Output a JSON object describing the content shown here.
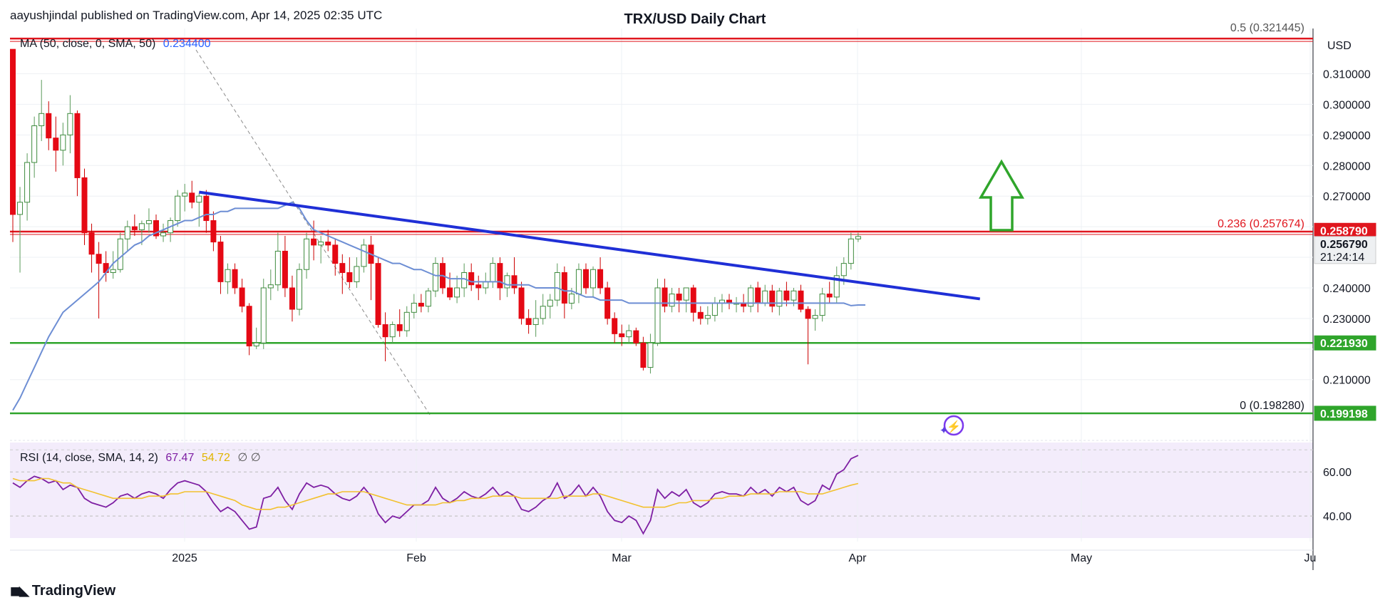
{
  "header": {
    "published": "aayushjindal published on TradingView.com, Apr 14, 2025 02:35 UTC",
    "title": "TRX/USD Daily Chart",
    "currency": "USD"
  },
  "ma_legend": {
    "label": "MA (50, close, 0, SMA, 50)",
    "value": "0.234400"
  },
  "rsi_legend": {
    "label": "RSI (14, close, SMA, 14, 2)",
    "rsi": "67.47",
    "sma": "54.72",
    "extra": "∅ ∅"
  },
  "brand": {
    "name": "TradingView",
    "logo": "tradingview-logo-icon"
  },
  "colors": {
    "up": "#7dc87d",
    "down": "#e50914",
    "ma": "#6d8ed4",
    "trendline": "#1f2fd6",
    "resistance": "#e0161e",
    "support": "#2fa52b",
    "rsi": "#7e1fa3",
    "rsi_sma": "#f2c12e",
    "rsi_band": "#f3ecfb",
    "arrow": "#2fa52b"
  },
  "chart_data": [
    {
      "type": "candlestick",
      "title": "TRX/USD Daily Chart",
      "currency": "USD",
      "x_axis": {
        "ticks": [
          "2025",
          "Feb",
          "Mar",
          "Apr",
          "May",
          "Ju"
        ]
      },
      "y_axis": {
        "ticks": [
          "0.310000",
          "0.300000",
          "0.290000",
          "0.280000",
          "0.270000",
          "0.240000",
          "0.230000",
          "0.210000"
        ],
        "range": [
          0.192,
          0.322
        ]
      },
      "price_badges": [
        {
          "value": "0.258790",
          "color": "red"
        },
        {
          "value": "0.256790",
          "sub": "21:24:14",
          "color": "gray"
        },
        {
          "value": "0.221930",
          "color": "green"
        },
        {
          "value": "0.199198",
          "color": "green"
        }
      ],
      "fib_levels": [
        {
          "label": "0.236 (0.257674)",
          "value": 0.257674
        },
        {
          "label": "0 (0.198280)",
          "value": 0.19828
        },
        {
          "label": "0.5 (0.321445)",
          "value": 0.321445
        }
      ],
      "horizontal_lines": [
        {
          "value": 0.3215,
          "color": "red"
        },
        {
          "value": 0.2584,
          "color": "red"
        },
        {
          "value": 0.222,
          "color": "green"
        },
        {
          "value": 0.199,
          "color": "green"
        }
      ],
      "candles": [
        [
          0.318,
          0.318,
          0.255,
          0.264
        ],
        [
          0.264,
          0.273,
          0.245,
          0.268
        ],
        [
          0.268,
          0.284,
          0.262,
          0.281
        ],
        [
          0.281,
          0.296,
          0.276,
          0.293
        ],
        [
          0.293,
          0.308,
          0.288,
          0.297
        ],
        [
          0.297,
          0.301,
          0.285,
          0.289
        ],
        [
          0.289,
          0.296,
          0.278,
          0.285
        ],
        [
          0.285,
          0.294,
          0.28,
          0.29
        ],
        [
          0.29,
          0.303,
          0.284,
          0.297
        ],
        [
          0.297,
          0.298,
          0.27,
          0.276
        ],
        [
          0.276,
          0.279,
          0.254,
          0.258
        ],
        [
          0.258,
          0.261,
          0.245,
          0.251
        ],
        [
          0.251,
          0.255,
          0.23,
          0.248
        ],
        [
          0.248,
          0.252,
          0.242,
          0.245
        ],
        [
          0.245,
          0.252,
          0.243,
          0.246
        ],
        [
          0.246,
          0.258,
          0.245,
          0.256
        ],
        [
          0.256,
          0.262,
          0.252,
          0.26
        ],
        [
          0.26,
          0.264,
          0.257,
          0.259
        ],
        [
          0.259,
          0.262,
          0.254,
          0.261
        ],
        [
          0.261,
          0.266,
          0.258,
          0.262
        ],
        [
          0.262,
          0.264,
          0.256,
          0.257
        ],
        [
          0.257,
          0.261,
          0.255,
          0.258
        ],
        [
          0.258,
          0.263,
          0.255,
          0.262
        ],
        [
          0.262,
          0.272,
          0.26,
          0.27
        ],
        [
          0.27,
          0.274,
          0.265,
          0.271
        ],
        [
          0.271,
          0.275,
          0.266,
          0.268
        ],
        [
          0.268,
          0.271,
          0.26,
          0.27
        ],
        [
          0.27,
          0.272,
          0.258,
          0.262
        ],
        [
          0.262,
          0.265,
          0.252,
          0.255
        ],
        [
          0.255,
          0.257,
          0.238,
          0.242
        ],
        [
          0.242,
          0.248,
          0.238,
          0.246
        ],
        [
          0.246,
          0.248,
          0.238,
          0.24
        ],
        [
          0.24,
          0.243,
          0.232,
          0.234
        ],
        [
          0.234,
          0.235,
          0.218,
          0.221
        ],
        [
          0.221,
          0.227,
          0.22,
          0.222
        ],
        [
          0.222,
          0.243,
          0.22,
          0.24
        ],
        [
          0.24,
          0.246,
          0.236,
          0.241
        ],
        [
          0.241,
          0.258,
          0.239,
          0.252
        ],
        [
          0.252,
          0.257,
          0.237,
          0.24
        ],
        [
          0.24,
          0.244,
          0.229,
          0.233
        ],
        [
          0.233,
          0.248,
          0.231,
          0.246
        ],
        [
          0.246,
          0.258,
          0.243,
          0.256
        ],
        [
          0.256,
          0.262,
          0.249,
          0.254
        ],
        [
          0.254,
          0.257,
          0.248,
          0.255
        ],
        [
          0.255,
          0.259,
          0.252,
          0.254
        ],
        [
          0.254,
          0.256,
          0.244,
          0.248
        ],
        [
          0.248,
          0.251,
          0.238,
          0.245
        ],
        [
          0.245,
          0.25,
          0.24,
          0.242
        ],
        [
          0.242,
          0.25,
          0.24,
          0.247
        ],
        [
          0.247,
          0.256,
          0.245,
          0.254
        ],
        [
          0.254,
          0.257,
          0.236,
          0.248
        ],
        [
          0.248,
          0.25,
          0.227,
          0.228
        ],
        [
          0.228,
          0.232,
          0.216,
          0.224
        ],
        [
          0.224,
          0.229,
          0.222,
          0.228
        ],
        [
          0.228,
          0.233,
          0.224,
          0.226
        ],
        [
          0.226,
          0.234,
          0.224,
          0.232
        ],
        [
          0.232,
          0.238,
          0.23,
          0.235
        ],
        [
          0.235,
          0.238,
          0.232,
          0.234
        ],
        [
          0.234,
          0.24,
          0.232,
          0.239
        ],
        [
          0.239,
          0.25,
          0.237,
          0.248
        ],
        [
          0.248,
          0.25,
          0.238,
          0.24
        ],
        [
          0.24,
          0.245,
          0.236,
          0.237
        ],
        [
          0.237,
          0.244,
          0.235,
          0.24
        ],
        [
          0.24,
          0.248,
          0.237,
          0.245
        ],
        [
          0.245,
          0.248,
          0.239,
          0.241
        ],
        [
          0.241,
          0.244,
          0.236,
          0.24
        ],
        [
          0.24,
          0.245,
          0.238,
          0.242
        ],
        [
          0.242,
          0.25,
          0.24,
          0.248
        ],
        [
          0.248,
          0.25,
          0.236,
          0.24
        ],
        [
          0.24,
          0.245,
          0.237,
          0.244
        ],
        [
          0.244,
          0.25,
          0.238,
          0.24
        ],
        [
          0.24,
          0.242,
          0.228,
          0.23
        ],
        [
          0.23,
          0.233,
          0.225,
          0.228
        ],
        [
          0.228,
          0.236,
          0.224,
          0.23
        ],
        [
          0.23,
          0.238,
          0.228,
          0.234
        ],
        [
          0.234,
          0.238,
          0.23,
          0.236
        ],
        [
          0.236,
          0.248,
          0.234,
          0.245
        ],
        [
          0.245,
          0.247,
          0.23,
          0.235
        ],
        [
          0.235,
          0.24,
          0.233,
          0.238
        ],
        [
          0.238,
          0.248,
          0.235,
          0.246
        ],
        [
          0.246,
          0.248,
          0.238,
          0.24
        ],
        [
          0.24,
          0.247,
          0.237,
          0.246
        ],
        [
          0.246,
          0.25,
          0.238,
          0.24
        ],
        [
          0.24,
          0.242,
          0.228,
          0.23
        ],
        [
          0.23,
          0.232,
          0.222,
          0.225
        ],
        [
          0.225,
          0.228,
          0.221,
          0.224
        ],
        [
          0.224,
          0.228,
          0.222,
          0.226
        ],
        [
          0.226,
          0.227,
          0.221,
          0.222
        ],
        [
          0.222,
          0.224,
          0.213,
          0.214
        ],
        [
          0.214,
          0.225,
          0.212,
          0.222
        ],
        [
          0.222,
          0.243,
          0.221,
          0.24
        ],
        [
          0.24,
          0.243,
          0.232,
          0.234
        ],
        [
          0.234,
          0.24,
          0.232,
          0.238
        ],
        [
          0.238,
          0.24,
          0.232,
          0.236
        ],
        [
          0.236,
          0.24,
          0.232,
          0.24
        ],
        [
          0.24,
          0.241,
          0.229,
          0.232
        ],
        [
          0.232,
          0.234,
          0.228,
          0.23
        ],
        [
          0.23,
          0.234,
          0.228,
          0.231
        ],
        [
          0.231,
          0.237,
          0.229,
          0.235
        ],
        [
          0.235,
          0.238,
          0.232,
          0.236
        ],
        [
          0.236,
          0.238,
          0.233,
          0.235
        ],
        [
          0.235,
          0.237,
          0.232,
          0.235
        ],
        [
          0.235,
          0.238,
          0.232,
          0.234
        ],
        [
          0.234,
          0.241,
          0.232,
          0.24
        ],
        [
          0.24,
          0.242,
          0.232,
          0.235
        ],
        [
          0.235,
          0.241,
          0.234,
          0.239
        ],
        [
          0.239,
          0.241,
          0.232,
          0.234
        ],
        [
          0.234,
          0.24,
          0.231,
          0.239
        ],
        [
          0.239,
          0.242,
          0.234,
          0.236
        ],
        [
          0.236,
          0.24,
          0.234,
          0.239
        ],
        [
          0.239,
          0.241,
          0.232,
          0.233
        ],
        [
          0.233,
          0.234,
          0.215,
          0.23
        ],
        [
          0.23,
          0.233,
          0.226,
          0.231
        ],
        [
          0.231,
          0.24,
          0.229,
          0.238
        ],
        [
          0.238,
          0.242,
          0.235,
          0.237
        ],
        [
          0.237,
          0.247,
          0.235,
          0.244
        ],
        [
          0.244,
          0.25,
          0.241,
          0.248
        ],
        [
          0.248,
          0.258,
          0.246,
          0.256
        ],
        [
          0.256,
          0.258,
          0.255,
          0.2568
        ]
      ],
      "moving_average": {
        "name": "MA (50, close, 0, SMA, 50)",
        "start_index": 0,
        "values": [
          0.2,
          0.204,
          0.209,
          0.214,
          0.219,
          0.224,
          0.228,
          0.232,
          0.234,
          0.236,
          0.238,
          0.24,
          0.242,
          0.245,
          0.248,
          0.25,
          0.252,
          0.254,
          0.255,
          0.257,
          0.258,
          0.259,
          0.26,
          0.261,
          0.262,
          0.262,
          0.263,
          0.264,
          0.264,
          0.265,
          0.265,
          0.266,
          0.266,
          0.266,
          0.266,
          0.266,
          0.266,
          0.266,
          0.267,
          0.268,
          0.266,
          0.262,
          0.259,
          0.258,
          0.257,
          0.256,
          0.255,
          0.254,
          0.253,
          0.252,
          0.251,
          0.25,
          0.249,
          0.248,
          0.248,
          0.247,
          0.246,
          0.246,
          0.245,
          0.244,
          0.244,
          0.243,
          0.243,
          0.243,
          0.242,
          0.242,
          0.242,
          0.242,
          0.242,
          0.241,
          0.241,
          0.241,
          0.241,
          0.24,
          0.24,
          0.24,
          0.24,
          0.239,
          0.239,
          0.238,
          0.237,
          0.237,
          0.236,
          0.236,
          0.236,
          0.236,
          0.235,
          0.235,
          0.235,
          0.235,
          0.235,
          0.235,
          0.235,
          0.235,
          0.235,
          0.235,
          0.235,
          0.235,
          0.235,
          0.235,
          0.235,
          0.235,
          0.235,
          0.235,
          0.235,
          0.235,
          0.235,
          0.235,
          0.235,
          0.235,
          0.235,
          0.235,
          0.235,
          0.235,
          0.235,
          0.235,
          0.235,
          0.2342,
          0.2344,
          0.2344
        ]
      },
      "trendline": {
        "from": [
          0.2713,
          26
        ],
        "to": [
          0.2364,
          135
        ]
      },
      "annotation": {
        "type": "up-arrow"
      }
    },
    {
      "type": "line",
      "title": "RSI (14, close, SMA, 14, 2)",
      "y_axis": {
        "ticks": [
          "60.00",
          "40.00"
        ],
        "range": [
          30,
          73
        ]
      },
      "band": [
        30,
        70
      ],
      "series": [
        {
          "name": "RSI",
          "values": [
            55,
            53,
            56,
            58,
            57,
            55,
            56,
            52,
            54,
            53,
            48,
            46,
            45,
            44,
            46,
            49,
            50,
            48,
            50,
            51,
            50,
            48,
            52,
            55,
            56,
            55,
            54,
            51,
            46,
            42,
            44,
            42,
            38,
            34,
            35,
            48,
            49,
            53,
            47,
            43,
            50,
            55,
            53,
            54,
            53,
            50,
            48,
            47,
            49,
            53,
            49,
            41,
            37,
            40,
            39,
            42,
            45,
            45,
            47,
            53,
            48,
            46,
            48,
            51,
            49,
            48,
            50,
            53,
            49,
            51,
            49,
            43,
            42,
            44,
            47,
            49,
            55,
            48,
            50,
            54,
            49,
            53,
            49,
            42,
            38,
            37,
            40,
            38,
            32,
            38,
            52,
            48,
            51,
            49,
            52,
            46,
            44,
            46,
            50,
            51,
            50,
            50,
            49,
            53,
            50,
            52,
            49,
            53,
            51,
            53,
            47,
            45,
            47,
            54,
            52,
            59,
            61,
            66,
            67.47
          ]
        },
        {
          "name": "SMA",
          "values": [
            57,
            56,
            56,
            56,
            57,
            57,
            56,
            55,
            55,
            53,
            52,
            51,
            50,
            49,
            48,
            48,
            48,
            48,
            48,
            49,
            49,
            49,
            50,
            50,
            51,
            51,
            51,
            51,
            50,
            49,
            48,
            47,
            45,
            44,
            43,
            43,
            43,
            44,
            44,
            45,
            46,
            47,
            48,
            49,
            50,
            50,
            51,
            51,
            51,
            51,
            50,
            49,
            48,
            47,
            46,
            45,
            45,
            45,
            45,
            45,
            46,
            46,
            47,
            47,
            48,
            48,
            48,
            49,
            49,
            49,
            49,
            48,
            48,
            48,
            48,
            48,
            48,
            49,
            49,
            49,
            49,
            50,
            50,
            49,
            48,
            47,
            46,
            45,
            44,
            44,
            44,
            44,
            45,
            46,
            46,
            47,
            47,
            47,
            48,
            48,
            49,
            49,
            49,
            50,
            50,
            50,
            50,
            51,
            51,
            51,
            51,
            50,
            50,
            50,
            51,
            52,
            53,
            54,
            54.72
          ]
        }
      ]
    }
  ]
}
